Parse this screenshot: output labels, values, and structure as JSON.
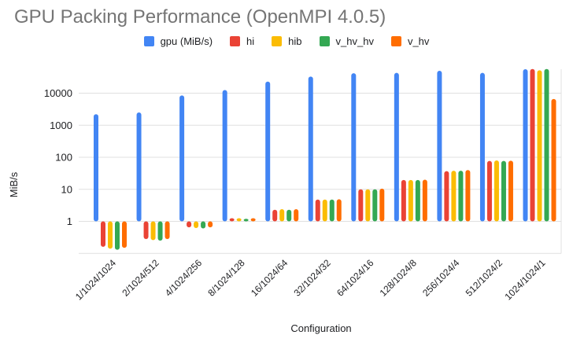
{
  "title": "GPU Packing Performance (OpenMPI 4.0.5)",
  "axis": {
    "y_label": "MiB/s",
    "x_label": "Configuration",
    "y_tick_labels": [
      "1",
      "10",
      "100",
      "1000",
      "10000"
    ]
  },
  "colors": {
    "title_gray": "#757575",
    "gridline": "#e0e0e0",
    "tick_text": "#202124",
    "series_blue": "#4285F4",
    "series_red": "#EA4335",
    "series_yellow": "#FBBC04",
    "series_green": "#34A853",
    "series_orange": "#FF6D01"
  },
  "chart_data": {
    "type": "bar",
    "title": "GPU Packing Performance (OpenMPI 4.0.5)",
    "xlabel": "Configuration",
    "ylabel": "MiB/s",
    "y_scale": "log",
    "baseline": 1,
    "ylim": [
      0.1,
      65000
    ],
    "y_ticks": [
      1,
      10,
      100,
      1000,
      10000
    ],
    "grid": true,
    "legend_position": "top",
    "categories": [
      "1/1024/1024",
      "2/1024/512",
      "4/1024/256",
      "8/1024/128",
      "16/1024/64",
      "32/1024/32",
      "64/1024/16",
      "128/1024/8",
      "256/1024/4",
      "512/1024/2",
      "1024/1024/1"
    ],
    "series": [
      {
        "name": "gpu (MiB/s)",
        "color": "#4285F4",
        "values": [
          2200,
          2500,
          8500,
          12500,
          23000,
          33000,
          42000,
          43000,
          50000,
          43000,
          56000
        ]
      },
      {
        "name": "hi",
        "color": "#EA4335",
        "values": [
          0.16,
          0.28,
          0.65,
          1.25,
          2.3,
          4.8,
          10,
          19.5,
          37,
          77,
          57000
        ]
      },
      {
        "name": "hib",
        "color": "#FBBC04",
        "values": [
          0.14,
          0.26,
          0.62,
          1.25,
          2.4,
          4.8,
          10,
          19.5,
          38,
          80,
          52000
        ]
      },
      {
        "name": "v_hv_hv",
        "color": "#34A853",
        "values": [
          0.13,
          0.25,
          0.6,
          1.2,
          2.3,
          4.8,
          10,
          19.5,
          38,
          77,
          57000
        ]
      },
      {
        "name": "v_hv",
        "color": "#FF6D01",
        "values": [
          0.15,
          0.28,
          0.65,
          1.25,
          2.4,
          4.9,
          10.5,
          20,
          40,
          78,
          6600
        ]
      }
    ]
  }
}
